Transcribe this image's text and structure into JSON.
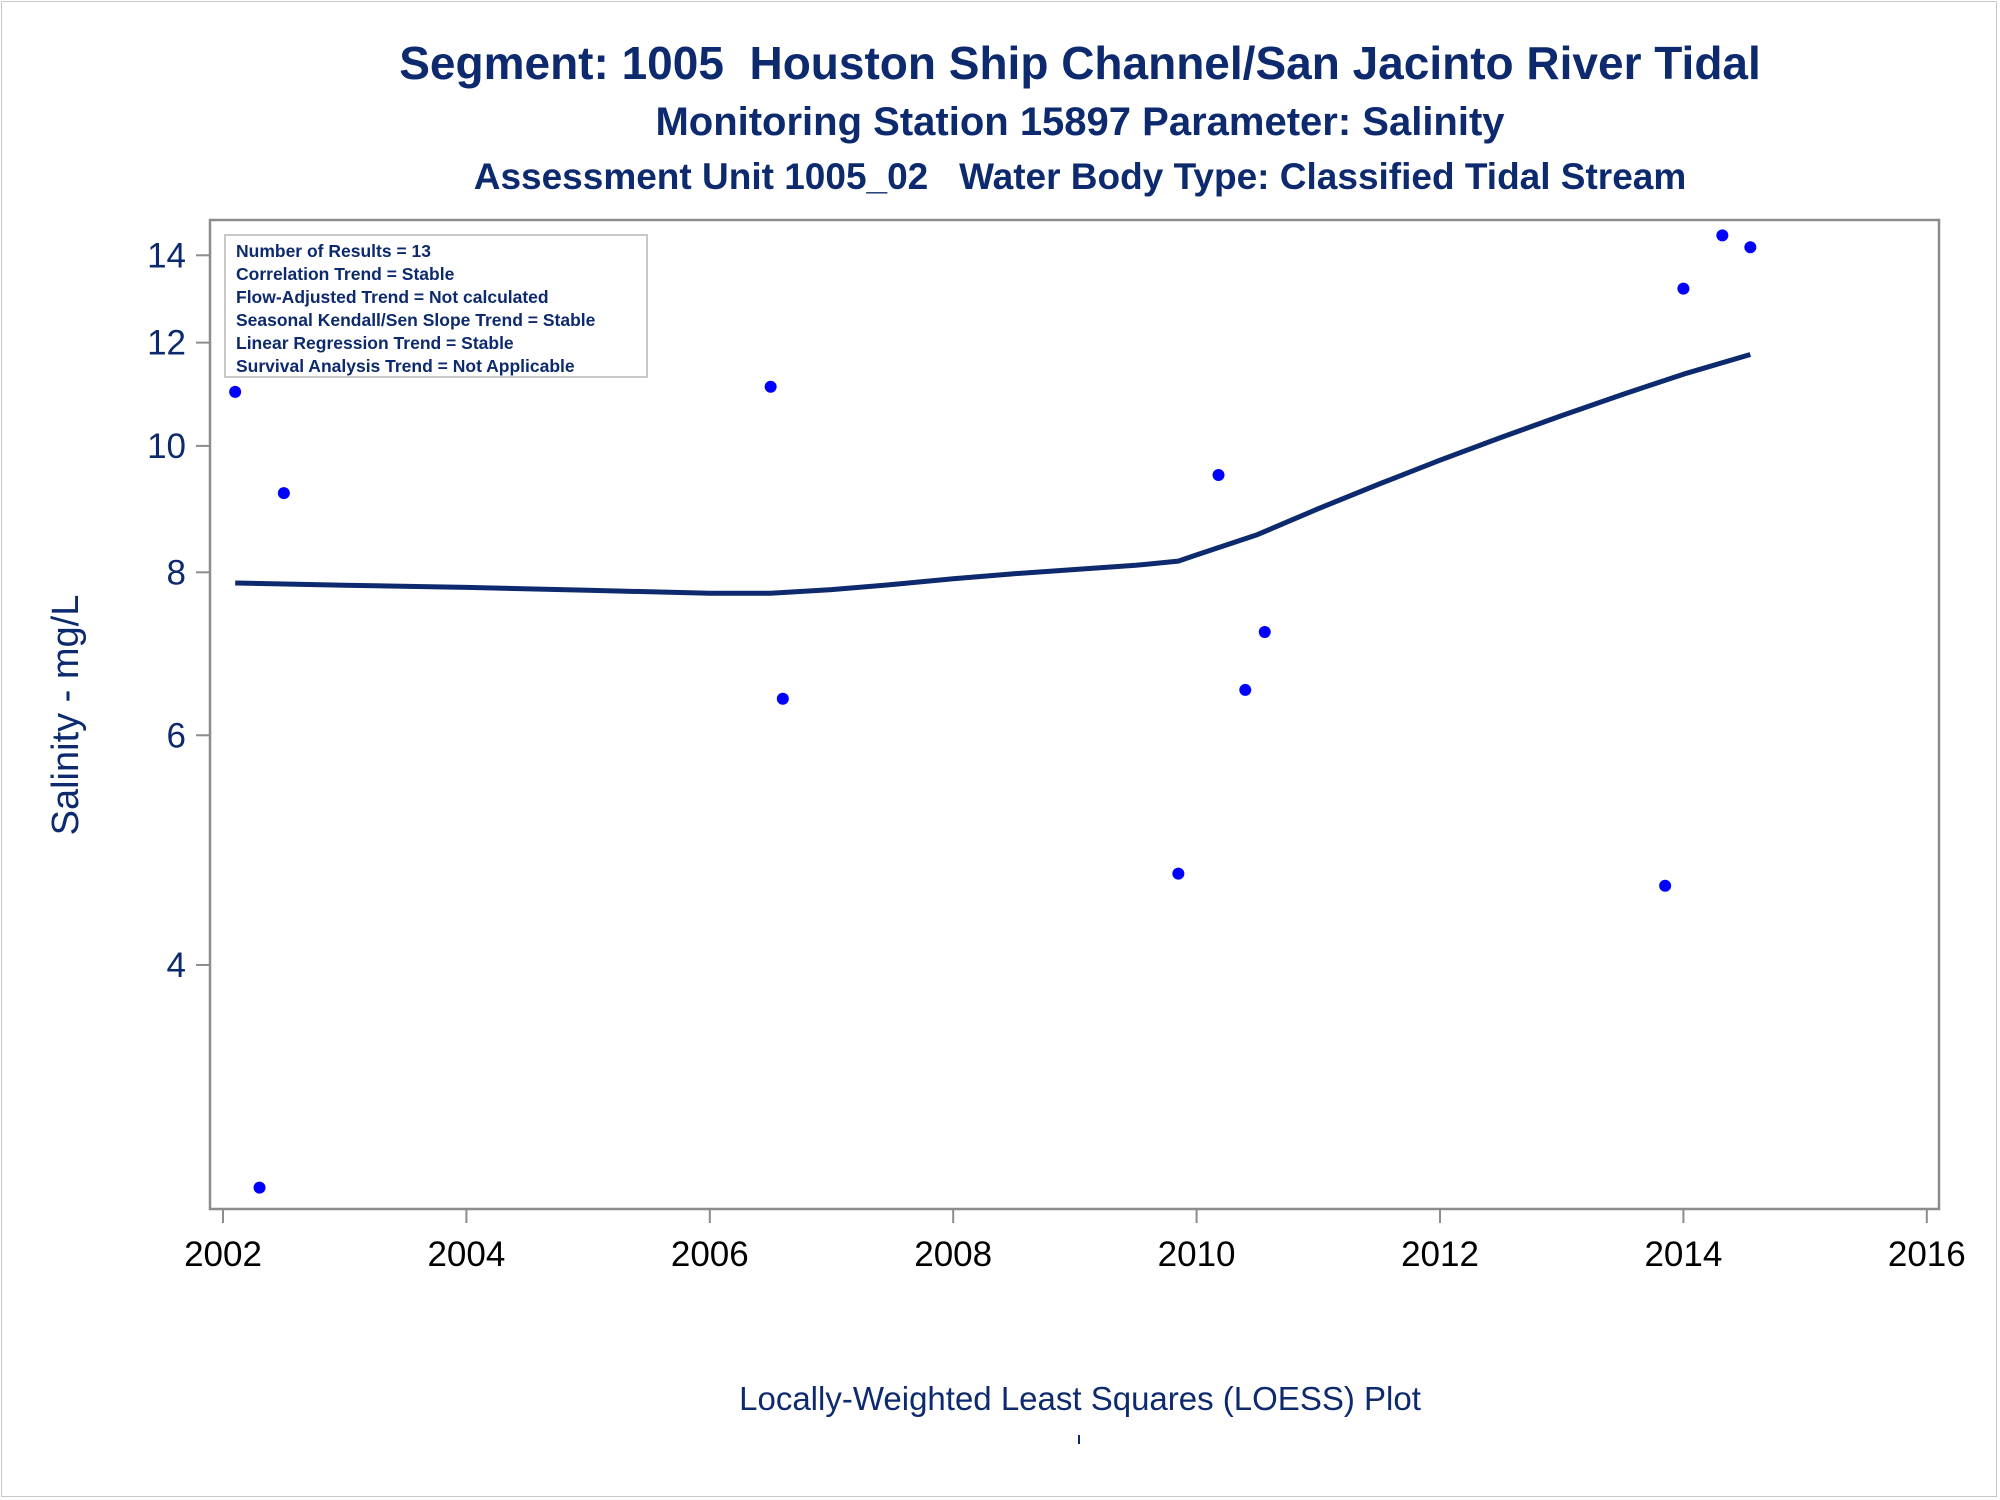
{
  "titles": {
    "line1": "Segment: 1005  Houston Ship Channel/San Jacinto River Tidal",
    "line2": "Monitoring Station 15897 Parameter: Salinity",
    "line3": "Assessment Unit 1005_02   Water Body Type: Classified Tidal Stream"
  },
  "footnote": "Locally-Weighted Least Squares (LOESS) Plot",
  "info_box": [
    "Number of Results = 13",
    "Correlation Trend = Stable",
    "Flow-Adjusted Trend = Not calculated",
    "Seasonal Kendall/Sen Slope Trend = Stable",
    "Linear Regression Trend = Stable",
    "Survival Analysis Trend = Not Applicable"
  ],
  "colors": {
    "text": "#0d2a6e",
    "points": "#0000ff",
    "loess": "#0d2a6e",
    "axis": "#8c8c8c"
  },
  "chart_data": {
    "type": "scatter",
    "title": "",
    "xlabel": "",
    "ylabel": "Salinity - mg/L",
    "xlim": [
      2002,
      2016
    ],
    "ylim": [
      2.6,
      14.9
    ],
    "yscale": "log",
    "xticks": [
      2002,
      2004,
      2006,
      2008,
      2010,
      2012,
      2014,
      2016
    ],
    "yticks": [
      4,
      6,
      8,
      10,
      12,
      14
    ],
    "grid": false,
    "series": [
      {
        "type": "scatter",
        "points": [
          {
            "x": 2002.1,
            "y": 11.0
          },
          {
            "x": 2002.3,
            "y": 2.7
          },
          {
            "x": 2002.5,
            "y": 9.2
          },
          {
            "x": 2006.5,
            "y": 11.1
          },
          {
            "x": 2006.6,
            "y": 6.4
          },
          {
            "x": 2009.85,
            "y": 4.7
          },
          {
            "x": 2010.18,
            "y": 9.5
          },
          {
            "x": 2010.4,
            "y": 6.5
          },
          {
            "x": 2010.56,
            "y": 7.2
          },
          {
            "x": 2013.85,
            "y": 4.6
          },
          {
            "x": 2014.0,
            "y": 13.2
          },
          {
            "x": 2014.32,
            "y": 14.5
          },
          {
            "x": 2014.55,
            "y": 14.2
          }
        ]
      },
      {
        "type": "line",
        "points": [
          {
            "x": 2002.1,
            "y": 7.85
          },
          {
            "x": 2003.0,
            "y": 7.82
          },
          {
            "x": 2004.0,
            "y": 7.79
          },
          {
            "x": 2005.0,
            "y": 7.75
          },
          {
            "x": 2006.0,
            "y": 7.71
          },
          {
            "x": 2006.5,
            "y": 7.71
          },
          {
            "x": 2007.0,
            "y": 7.76
          },
          {
            "x": 2007.5,
            "y": 7.83
          },
          {
            "x": 2008.0,
            "y": 7.91
          },
          {
            "x": 2008.5,
            "y": 7.98
          },
          {
            "x": 2009.0,
            "y": 8.04
          },
          {
            "x": 2009.5,
            "y": 8.1
          },
          {
            "x": 2009.85,
            "y": 8.16
          },
          {
            "x": 2010.0,
            "y": 8.25
          },
          {
            "x": 2010.5,
            "y": 8.55
          },
          {
            "x": 2011.0,
            "y": 8.95
          },
          {
            "x": 2011.5,
            "y": 9.35
          },
          {
            "x": 2012.0,
            "y": 9.75
          },
          {
            "x": 2012.5,
            "y": 10.15
          },
          {
            "x": 2013.0,
            "y": 10.55
          },
          {
            "x": 2013.5,
            "y": 10.95
          },
          {
            "x": 2014.0,
            "y": 11.35
          },
          {
            "x": 2014.55,
            "y": 11.75
          }
        ]
      }
    ]
  }
}
